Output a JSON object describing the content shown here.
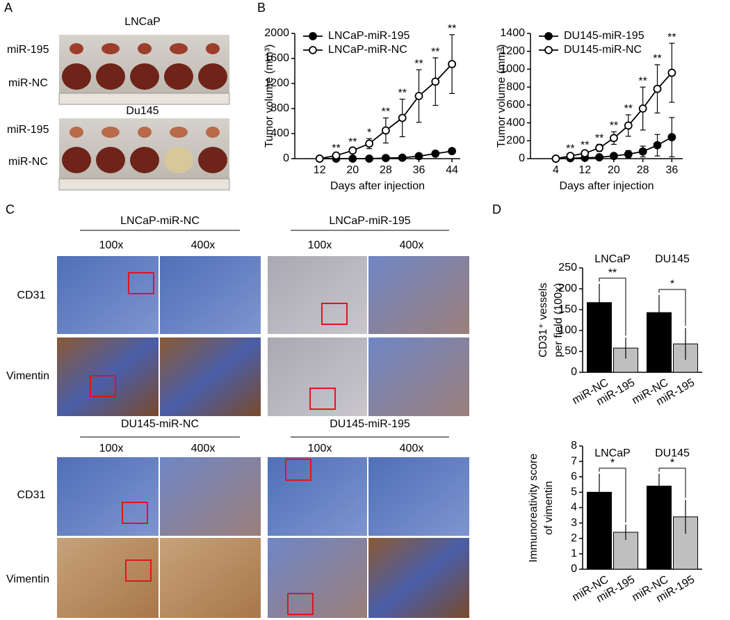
{
  "panel_labels": [
    "A",
    "B",
    "C",
    "D"
  ],
  "panel_a": {
    "groups": [
      {
        "title": "LNCaP",
        "rows": [
          "miR-195",
          "miR-NC"
        ]
      },
      {
        "title": "Du145",
        "rows": [
          "miR-195",
          "miR-NC"
        ]
      }
    ]
  },
  "panel_c": {
    "groups": [
      {
        "title": "LNCaP-miR-NC",
        "magnifications": [
          "100x",
          "400x"
        ]
      },
      {
        "title": "LNCaP-miR-195",
        "magnifications": [
          "100x",
          "400x"
        ]
      },
      {
        "title": "DU145-miR-NC",
        "magnifications": [
          "100x",
          "400x"
        ]
      },
      {
        "title": "DU145-miR-195",
        "magnifications": [
          "100x",
          "400x"
        ]
      }
    ],
    "row_labels": [
      "CD31",
      "Vimentin",
      "CD31",
      "Vimentin"
    ]
  },
  "chart_data": [
    {
      "type": "line",
      "x_label": "Days after injection",
      "y_label": "Tumor volume (mm³)",
      "x": [
        12,
        16,
        20,
        24,
        28,
        32,
        36,
        40,
        44
      ],
      "xlim": [
        6,
        46
      ],
      "xticks": [
        12,
        20,
        28,
        36,
        44
      ],
      "ylim": [
        0,
        2000
      ],
      "yticks": [
        0,
        400,
        800,
        1200,
        1600,
        2000
      ],
      "legend": "upper left",
      "series": [
        {
          "name": "LNCaP-miR-195",
          "color": "#000000",
          "marker_fill": "#000000",
          "values": [
            0,
            0,
            0,
            0,
            10,
            15,
            40,
            80,
            120
          ],
          "errors": [
            0,
            0,
            0,
            0,
            5,
            10,
            15,
            25,
            40
          ]
        },
        {
          "name": "LNCaP-miR-NC",
          "color": "#000000",
          "marker_fill": "#ffffff",
          "values": [
            0,
            50,
            130,
            240,
            450,
            650,
            1000,
            1230,
            1510
          ],
          "errors": [
            0,
            20,
            40,
            80,
            200,
            300,
            420,
            380,
            470
          ]
        }
      ],
      "annotations": [
        null,
        "**",
        "**",
        "*",
        "**",
        "**",
        "**",
        "**",
        "**"
      ]
    },
    {
      "type": "line",
      "x_label": "Days after injection",
      "y_label": "Tumor volume (mm³)",
      "x": [
        4,
        8,
        12,
        16,
        20,
        24,
        28,
        32,
        36
      ],
      "xlim": [
        -3,
        39
      ],
      "xticks": [
        4,
        12,
        20,
        28,
        36
      ],
      "ylim": [
        0,
        1400
      ],
      "yticks": [
        0,
        200,
        400,
        600,
        800,
        1000,
        1200,
        1400
      ],
      "legend": "upper left",
      "series": [
        {
          "name": "DU145-miR-195",
          "color": "#000000",
          "marker_fill": "#000000",
          "values": [
            0,
            5,
            10,
            15,
            30,
            50,
            80,
            150,
            240
          ],
          "errors": [
            0,
            5,
            10,
            20,
            30,
            40,
            60,
            120,
            220
          ]
        },
        {
          "name": "DU145-miR-NC",
          "color": "#000000",
          "marker_fill": "#ffffff",
          "values": [
            0,
            30,
            60,
            120,
            230,
            370,
            560,
            780,
            960
          ],
          "errors": [
            0,
            15,
            25,
            40,
            70,
            120,
            240,
            270,
            330
          ]
        }
      ],
      "annotations": [
        null,
        "**",
        "**",
        "**",
        "**",
        "**",
        "**",
        "**",
        "**"
      ]
    },
    {
      "type": "bar",
      "y_label": [
        "CD31⁺ vessels",
        "per field (100x)"
      ],
      "categories": [
        "LNCaP",
        "DU145"
      ],
      "ylim": [
        0,
        250
      ],
      "yticks": [
        0,
        50,
        100,
        150,
        200,
        250
      ],
      "series": [
        {
          "name": "miR-NC",
          "color": "#000000",
          "values": [
            167,
            143
          ],
          "errors": [
            45,
            42
          ]
        },
        {
          "name": "miR-195",
          "color": "#bfbfbf",
          "values": [
            58,
            68
          ],
          "errors": [
            25,
            38
          ]
        }
      ],
      "annotations": [
        "**",
        "*"
      ]
    },
    {
      "type": "bar",
      "y_label": [
        "Immunoreativity score",
        "of vimentin"
      ],
      "categories": [
        "LNCaP",
        "DU145"
      ],
      "ylim": [
        0,
        8
      ],
      "yticks": [
        0,
        1,
        2,
        3,
        4,
        5,
        6,
        7,
        8
      ],
      "series": [
        {
          "name": "miR-NC",
          "color": "#000000",
          "values": [
            5,
            5.4
          ],
          "errors": [
            1.2,
            0.8
          ]
        },
        {
          "name": "miR-195",
          "color": "#bfbfbf",
          "values": [
            2.4,
            3.4
          ],
          "errors": [
            0.5,
            1.1
          ]
        }
      ],
      "annotations": [
        "*",
        "*"
      ]
    }
  ]
}
